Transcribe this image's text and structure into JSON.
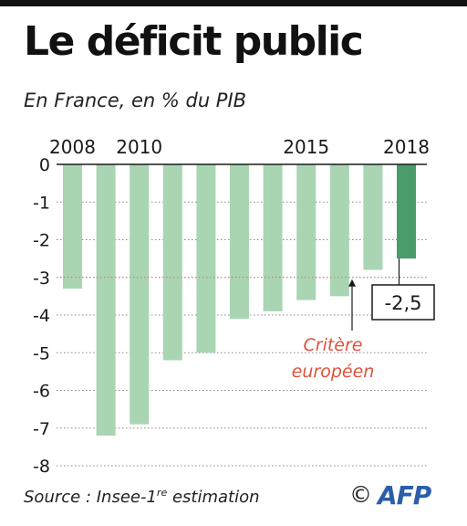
{
  "header": {
    "title": "Le déficit public",
    "subtitle": "En France, en % du PIB"
  },
  "chart_data": {
    "type": "bar",
    "categories": [
      "2008",
      "2009",
      "2010",
      "2011",
      "2012",
      "2013",
      "2014",
      "2015",
      "2016",
      "2017",
      "2018"
    ],
    "x_tick_labels": [
      "2008",
      "",
      "2010",
      "",
      "",
      "",
      "",
      "2015",
      "",
      "",
      "2018"
    ],
    "values": [
      -3.3,
      -7.2,
      -6.9,
      -5.2,
      -5.0,
      -4.1,
      -3.9,
      -3.6,
      -3.5,
      -2.8,
      -2.5
    ],
    "y_tick_labels": [
      "0",
      "-1",
      "-2",
      "-3",
      "-4",
      "-5",
      "-6",
      "-7",
      "-8"
    ],
    "ylim": [
      -8,
      0
    ],
    "grid": true,
    "reference_line": {
      "value": -3,
      "label_line1": "Critère",
      "label_line2": "européen"
    },
    "highlight": {
      "category": "2018",
      "label": "-2,5"
    },
    "colors": {
      "bar": "#a9d5b3",
      "bar_highlight": "#4a9d6b",
      "grid": "#888888",
      "reference_line": "#e07060",
      "reference_label": "#e0523c"
    }
  },
  "footer": {
    "source_prefix": "Source : Insee-1",
    "source_sup": "re",
    "source_suffix": " estimation",
    "copyright_symbol": "©",
    "logo_text": "AFP"
  }
}
